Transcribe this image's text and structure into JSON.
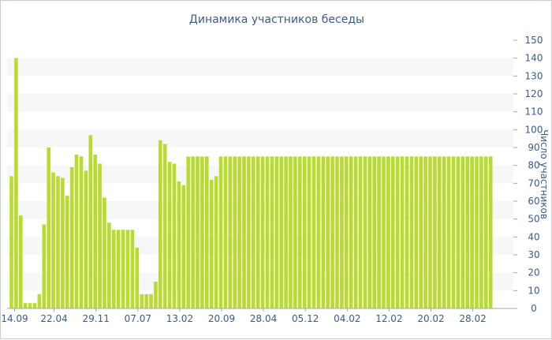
{
  "colors": {
    "bar": "#b7dc2f",
    "band": "#f7f7f7",
    "axis": "#3b5a8a",
    "axis_line": "#9aa7b8"
  },
  "chart_data": {
    "type": "bar",
    "title": "Динамика участников беседы",
    "xlabel": "",
    "ylabel": "Число участников",
    "ylim": [
      0,
      150
    ],
    "yticks": [
      0,
      10,
      20,
      30,
      40,
      50,
      60,
      70,
      80,
      90,
      100,
      110,
      120,
      130,
      140,
      150
    ],
    "grid": "alternating horizontal bands",
    "x_tick_labels": [
      "14.09",
      "22.04",
      "29.11",
      "07.07",
      "13.02",
      "20.09",
      "28.04",
      "05.12",
      "04.02",
      "12.02",
      "20.02",
      "28.02"
    ],
    "x_tick_bar_index": [
      0,
      9,
      18,
      27,
      36,
      45,
      54,
      63,
      72,
      81,
      90,
      99
    ],
    "values": [
      74,
      140,
      52,
      3,
      3,
      3,
      8,
      47,
      90,
      76,
      74,
      73,
      63,
      79,
      86,
      85,
      77,
      97,
      86,
      81,
      62,
      48,
      44,
      44,
      44,
      44,
      44,
      34,
      8,
      8,
      8,
      15,
      94,
      92,
      82,
      81,
      71,
      69,
      85,
      85,
      85,
      85,
      85,
      72,
      74,
      85,
      85,
      85,
      85,
      85,
      85,
      85,
      85,
      85,
      85,
      85,
      85,
      85,
      85,
      85,
      85,
      85,
      85,
      85,
      85,
      85,
      85,
      85,
      85,
      85,
      85,
      85,
      85,
      85,
      85,
      85,
      85,
      85,
      85,
      85,
      85,
      85,
      85,
      85,
      85,
      85,
      85,
      85,
      85,
      85,
      85,
      85,
      85,
      85,
      85,
      85,
      85,
      85,
      85,
      85,
      85,
      85,
      85,
      85
    ]
  }
}
